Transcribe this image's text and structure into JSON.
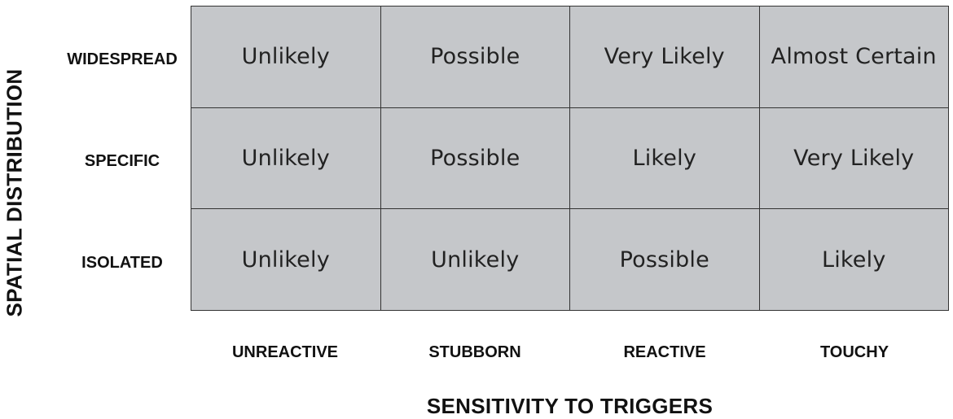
{
  "y_axis_title": "SPATIAL DISTRIBUTION",
  "x_axis_title": "SENSITIVITY TO TRIGGERS",
  "rows": [
    "WIDESPREAD",
    "SPECIFIC",
    "ISOLATED"
  ],
  "columns": [
    "UNREACTIVE",
    "STUBBORN",
    "REACTIVE",
    "TOUCHY"
  ],
  "cells": [
    [
      "Unlikely",
      "Possible",
      "Very Likely",
      "Almost Certain"
    ],
    [
      "Unlikely",
      "Possible",
      "Likely",
      "Very Likely"
    ],
    [
      "Unlikely",
      "Unlikely",
      "Possible",
      "Likely"
    ]
  ],
  "colors": {
    "cell_fill": "#c5c7ca",
    "grid_line": "#333333",
    "text": "#111111"
  }
}
